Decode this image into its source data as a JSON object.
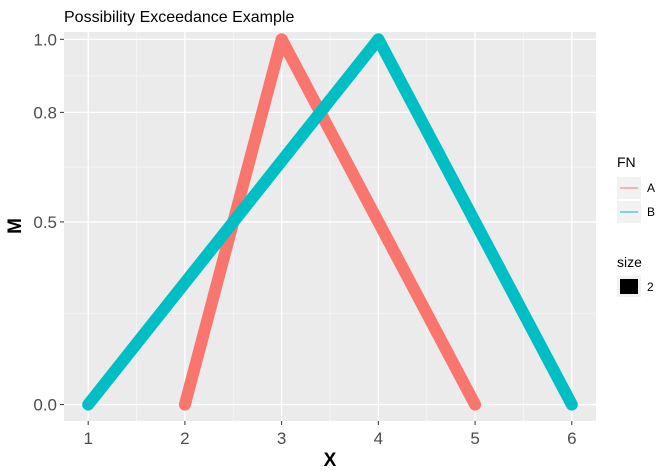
{
  "chart_data": {
    "type": "line",
    "title": "Possibility Exceedance Example",
    "xlabel": "X",
    "ylabel": "M",
    "xlim": [
      0.75,
      6.25
    ],
    "ylim": [
      -0.045,
      1.02
    ],
    "x_ticks": [
      1,
      2,
      3,
      4,
      5,
      6
    ],
    "x_tick_labels": [
      "1",
      "2",
      "3",
      "4",
      "5",
      "6"
    ],
    "y_ticks": [
      0.0,
      0.5,
      0.8,
      1.0
    ],
    "y_tick_labels": [
      "0.0",
      "0.5",
      "0.8",
      "1.0"
    ],
    "grid": true,
    "series": [
      {
        "name": "A",
        "color": "#F8766D",
        "x": [
          2,
          3,
          5
        ],
        "y": [
          0,
          1,
          0
        ]
      },
      {
        "name": "B",
        "color": "#00BFC4",
        "x": [
          1,
          4,
          6
        ],
        "y": [
          0,
          1,
          0
        ]
      }
    ],
    "legend": {
      "position": "right",
      "color_title": "FN",
      "size_title": "size",
      "size_label": "2"
    }
  }
}
